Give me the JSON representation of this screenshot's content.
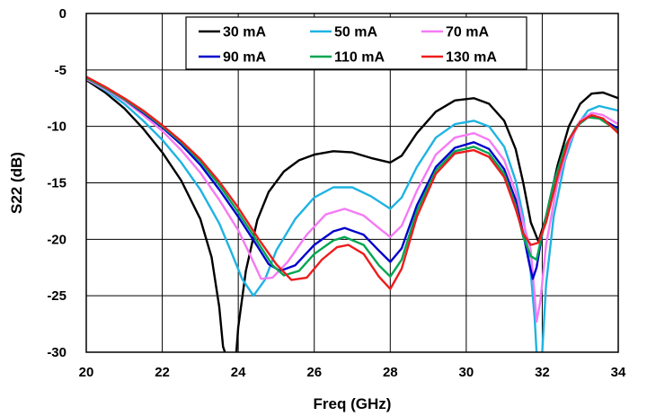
{
  "chart_data": {
    "type": "line",
    "title": "",
    "xlabel": "Freq (GHz)",
    "ylabel": "S22 (dB)",
    "xlim": [
      20,
      34
    ],
    "ylim": [
      -30,
      0
    ],
    "x_ticks": [
      20,
      22,
      24,
      26,
      28,
      30,
      32,
      34
    ],
    "y_ticks": [
      0,
      -5,
      -10,
      -15,
      -20,
      -25,
      -30
    ],
    "grid": true,
    "legend_position": "top-center",
    "series": [
      {
        "name": "30 mA",
        "color": "#000000",
        "points": [
          [
            20,
            -5.9
          ],
          [
            20.5,
            -7.0
          ],
          [
            21,
            -8.4
          ],
          [
            21.5,
            -10.2
          ],
          [
            22,
            -12.3
          ],
          [
            22.5,
            -14.8
          ],
          [
            23,
            -18.2
          ],
          [
            23.3,
            -21.6
          ],
          [
            23.5,
            -26.0
          ],
          [
            23.6,
            -29.5
          ],
          [
            23.65,
            -30.0
          ],
          [
            null,
            null
          ],
          [
            23.95,
            -30.0
          ],
          [
            24.0,
            -27.8
          ],
          [
            24.2,
            -22.8
          ],
          [
            24.5,
            -18.3
          ],
          [
            24.8,
            -15.8
          ],
          [
            25.2,
            -14.0
          ],
          [
            25.6,
            -13.0
          ],
          [
            26,
            -12.5
          ],
          [
            26.5,
            -12.2
          ],
          [
            27,
            -12.3
          ],
          [
            27.5,
            -12.8
          ],
          [
            28,
            -13.2
          ],
          [
            28.3,
            -12.6
          ],
          [
            28.7,
            -10.6
          ],
          [
            29.2,
            -8.7
          ],
          [
            29.7,
            -7.7
          ],
          [
            30.2,
            -7.5
          ],
          [
            30.6,
            -8.0
          ],
          [
            31,
            -9.5
          ],
          [
            31.3,
            -12.0
          ],
          [
            31.5,
            -15.0
          ],
          [
            31.7,
            -18.5
          ],
          [
            31.9,
            -20.2
          ],
          [
            32.1,
            -18.0
          ],
          [
            32.4,
            -13.5
          ],
          [
            32.7,
            -10.0
          ],
          [
            33,
            -8.0
          ],
          [
            33.3,
            -7.1
          ],
          [
            33.6,
            -7.0
          ],
          [
            34,
            -7.5
          ]
        ]
      },
      {
        "name": "50 mA",
        "color": "#1fb3e3",
        "points": [
          [
            20,
            -5.8
          ],
          [
            20.5,
            -6.8
          ],
          [
            21,
            -8.0
          ],
          [
            21.5,
            -9.5
          ],
          [
            22,
            -11.2
          ],
          [
            22.5,
            -13.2
          ],
          [
            23,
            -15.6
          ],
          [
            23.5,
            -18.6
          ],
          [
            23.8,
            -21.0
          ],
          [
            24.1,
            -23.5
          ],
          [
            24.4,
            -25.0
          ],
          [
            24.7,
            -23.6
          ],
          [
            25,
            -21.0
          ],
          [
            25.5,
            -18.2
          ],
          [
            26,
            -16.3
          ],
          [
            26.5,
            -15.4
          ],
          [
            27,
            -15.4
          ],
          [
            27.5,
            -16.2
          ],
          [
            28,
            -17.3
          ],
          [
            28.3,
            -16.3
          ],
          [
            28.7,
            -13.6
          ],
          [
            29.2,
            -11.0
          ],
          [
            29.7,
            -9.8
          ],
          [
            30.2,
            -9.5
          ],
          [
            30.6,
            -10.0
          ],
          [
            31,
            -11.8
          ],
          [
            31.3,
            -14.8
          ],
          [
            31.5,
            -18.0
          ],
          [
            31.7,
            -23.0
          ],
          [
            31.8,
            -27.0
          ],
          [
            31.85,
            -30.0
          ],
          [
            null,
            null
          ],
          [
            32.0,
            -30.0
          ],
          [
            32.1,
            -24.0
          ],
          [
            32.3,
            -18.0
          ],
          [
            32.6,
            -13.0
          ],
          [
            32.9,
            -10.0
          ],
          [
            33.2,
            -8.6
          ],
          [
            33.5,
            -8.2
          ],
          [
            34,
            -8.6
          ]
        ]
      },
      {
        "name": "70 mA",
        "color": "#f57af5",
        "points": [
          [
            20,
            -5.8
          ],
          [
            20.5,
            -6.7
          ],
          [
            21,
            -7.7
          ],
          [
            21.5,
            -9.0
          ],
          [
            22,
            -10.4
          ],
          [
            22.5,
            -12.1
          ],
          [
            23,
            -14.1
          ],
          [
            23.5,
            -16.5
          ],
          [
            24,
            -19.2
          ],
          [
            24.3,
            -21.3
          ],
          [
            24.6,
            -23.5
          ],
          [
            24.9,
            -23.4
          ],
          [
            25.3,
            -22.0
          ],
          [
            25.8,
            -19.6
          ],
          [
            26.3,
            -17.8
          ],
          [
            26.8,
            -17.3
          ],
          [
            27.3,
            -17.9
          ],
          [
            27.7,
            -19.0
          ],
          [
            28,
            -19.8
          ],
          [
            28.3,
            -18.8
          ],
          [
            28.7,
            -15.7
          ],
          [
            29.2,
            -12.5
          ],
          [
            29.7,
            -11.0
          ],
          [
            30.2,
            -10.6
          ],
          [
            30.6,
            -11.2
          ],
          [
            31,
            -13.0
          ],
          [
            31.3,
            -15.8
          ],
          [
            31.5,
            -18.5
          ],
          [
            31.7,
            -21.0
          ],
          [
            31.8,
            -25.0
          ],
          [
            31.85,
            -27.3
          ],
          [
            31.95,
            -25.5
          ],
          [
            32.1,
            -20.5
          ],
          [
            32.4,
            -15.0
          ],
          [
            32.7,
            -11.5
          ],
          [
            33,
            -9.5
          ],
          [
            33.3,
            -8.8
          ],
          [
            33.6,
            -9.0
          ],
          [
            34,
            -9.8
          ]
        ]
      },
      {
        "name": "90 mA",
        "color": "#0000cc",
        "points": [
          [
            20,
            -5.7
          ],
          [
            20.5,
            -6.6
          ],
          [
            21,
            -7.6
          ],
          [
            21.5,
            -8.8
          ],
          [
            22,
            -10.1
          ],
          [
            22.5,
            -11.6
          ],
          [
            23,
            -13.4
          ],
          [
            23.5,
            -15.6
          ],
          [
            24,
            -18.0
          ],
          [
            24.5,
            -20.6
          ],
          [
            24.8,
            -22.2
          ],
          [
            25.1,
            -22.8
          ],
          [
            25.5,
            -22.3
          ],
          [
            26,
            -20.5
          ],
          [
            26.5,
            -19.3
          ],
          [
            26.8,
            -19.0
          ],
          [
            27.3,
            -19.6
          ],
          [
            27.7,
            -21.0
          ],
          [
            28,
            -22.0
          ],
          [
            28.3,
            -20.8
          ],
          [
            28.7,
            -17.0
          ],
          [
            29.2,
            -13.6
          ],
          [
            29.7,
            -11.9
          ],
          [
            30.2,
            -11.4
          ],
          [
            30.6,
            -12.0
          ],
          [
            31,
            -13.8
          ],
          [
            31.3,
            -16.5
          ],
          [
            31.5,
            -19.5
          ],
          [
            31.65,
            -22.0
          ],
          [
            31.75,
            -23.5
          ],
          [
            31.85,
            -22.5
          ],
          [
            32,
            -19.5
          ],
          [
            32.3,
            -15.0
          ],
          [
            32.6,
            -11.8
          ],
          [
            32.9,
            -10.0
          ],
          [
            33.2,
            -9.2
          ],
          [
            33.5,
            -9.2
          ],
          [
            34,
            -10.2
          ]
        ]
      },
      {
        "name": "110 mA",
        "color": "#00a651",
        "points": [
          [
            20,
            -5.7
          ],
          [
            20.5,
            -6.6
          ],
          [
            21,
            -7.6
          ],
          [
            21.5,
            -8.7
          ],
          [
            22,
            -10.0
          ],
          [
            22.5,
            -11.4
          ],
          [
            23,
            -13.1
          ],
          [
            23.5,
            -15.2
          ],
          [
            24,
            -17.6
          ],
          [
            24.5,
            -20.2
          ],
          [
            24.9,
            -22.3
          ],
          [
            25.2,
            -23.2
          ],
          [
            25.6,
            -22.8
          ],
          [
            26,
            -21.3
          ],
          [
            26.5,
            -20.1
          ],
          [
            26.8,
            -19.8
          ],
          [
            27.3,
            -20.5
          ],
          [
            27.7,
            -22.3
          ],
          [
            28,
            -23.3
          ],
          [
            28.3,
            -21.8
          ],
          [
            28.7,
            -17.5
          ],
          [
            29.2,
            -13.9
          ],
          [
            29.7,
            -12.2
          ],
          [
            30.2,
            -11.8
          ],
          [
            30.6,
            -12.4
          ],
          [
            31,
            -14.2
          ],
          [
            31.3,
            -17.0
          ],
          [
            31.5,
            -19.8
          ],
          [
            31.7,
            -21.5
          ],
          [
            31.85,
            -21.8
          ],
          [
            32,
            -19.5
          ],
          [
            32.3,
            -15.0
          ],
          [
            32.6,
            -11.8
          ],
          [
            32.9,
            -10.0
          ],
          [
            33.2,
            -9.2
          ],
          [
            33.5,
            -9.3
          ],
          [
            34,
            -10.4
          ]
        ]
      },
      {
        "name": "130 mA",
        "color": "#ee1c1c",
        "points": [
          [
            20,
            -5.6
          ],
          [
            20.5,
            -6.5
          ],
          [
            21,
            -7.5
          ],
          [
            21.5,
            -8.6
          ],
          [
            22,
            -9.9
          ],
          [
            22.5,
            -11.3
          ],
          [
            23,
            -12.9
          ],
          [
            23.5,
            -14.9
          ],
          [
            24,
            -17.2
          ],
          [
            24.5,
            -19.8
          ],
          [
            25,
            -22.2
          ],
          [
            25.4,
            -23.6
          ],
          [
            25.8,
            -23.4
          ],
          [
            26.2,
            -21.8
          ],
          [
            26.6,
            -20.7
          ],
          [
            26.9,
            -20.5
          ],
          [
            27.3,
            -21.3
          ],
          [
            27.7,
            -23.3
          ],
          [
            28,
            -24.4
          ],
          [
            28.3,
            -22.6
          ],
          [
            28.7,
            -18.0
          ],
          [
            29.2,
            -14.2
          ],
          [
            29.7,
            -12.4
          ],
          [
            30.2,
            -12.1
          ],
          [
            30.6,
            -12.7
          ],
          [
            31,
            -14.5
          ],
          [
            31.3,
            -17.3
          ],
          [
            31.5,
            -19.5
          ],
          [
            31.7,
            -20.5
          ],
          [
            31.9,
            -20.3
          ],
          [
            32.1,
            -18.5
          ],
          [
            32.4,
            -14.5
          ],
          [
            32.7,
            -11.2
          ],
          [
            33,
            -9.6
          ],
          [
            33.3,
            -9.0
          ],
          [
            33.6,
            -9.3
          ],
          [
            34,
            -10.6
          ]
        ]
      }
    ]
  }
}
